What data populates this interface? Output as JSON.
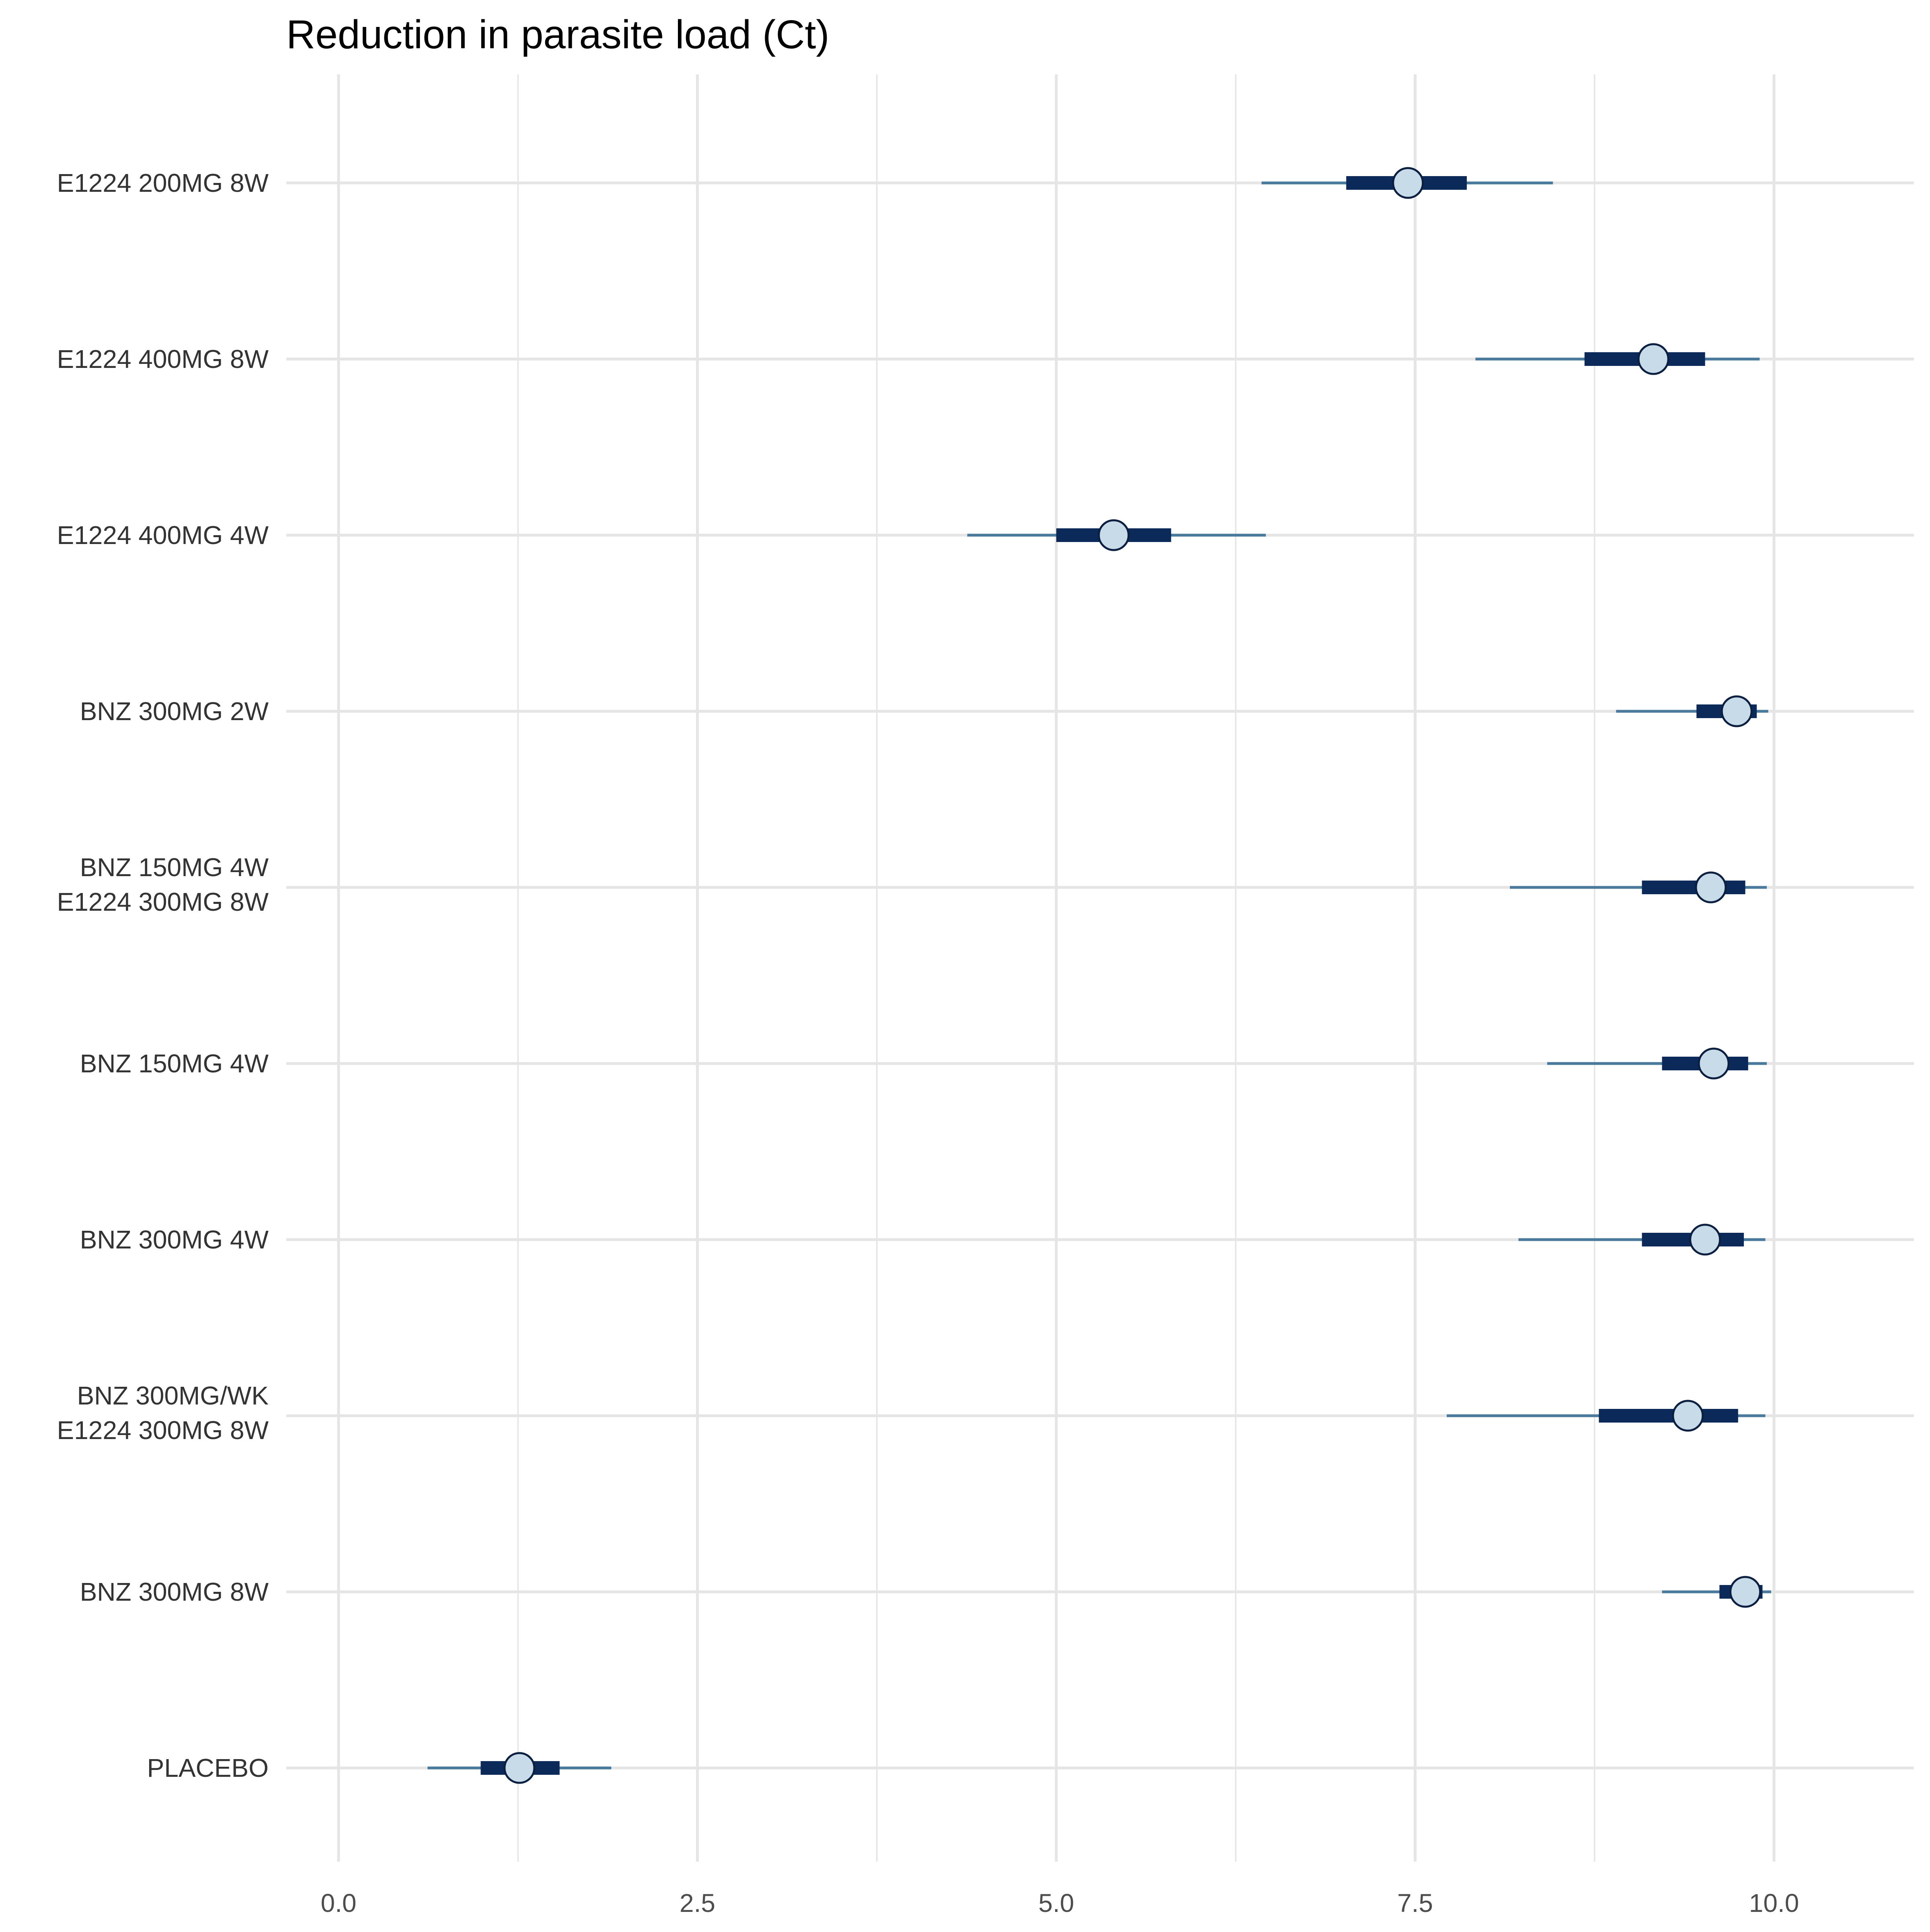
{
  "chart_data": {
    "type": "interval",
    "title": "Reduction in parasite load (Ct)",
    "xlabel": "",
    "ylabel": "",
    "xlim": [
      -0.37,
      10.98
    ],
    "xticks": [
      "0.0",
      "2.5",
      "5.0",
      "7.5",
      "10.0"
    ],
    "xtick_values": [
      0,
      2.5,
      5,
      7.5,
      10
    ],
    "grid": true,
    "colors": {
      "outer_interval": "#4a7a9b",
      "inner_interval": "#0b2a5a",
      "point_fill": "#c8dbe8",
      "point_stroke": "#0b1f40",
      "grid": "#e5e5e5"
    },
    "series": [
      {
        "label": [
          "E1224 200MG 8W"
        ],
        "median": 7.45,
        "inner": [
          7.02,
          7.86
        ],
        "outer": [
          6.43,
          8.46
        ]
      },
      {
        "label": [
          "E1224 400MG 8W"
        ],
        "median": 9.16,
        "inner": [
          8.68,
          9.52
        ],
        "outer": [
          7.92,
          9.9
        ]
      },
      {
        "label": [
          "E1224 400MG 4W"
        ],
        "median": 5.4,
        "inner": [
          5.0,
          5.8
        ],
        "outer": [
          4.38,
          6.46
        ]
      },
      {
        "label": [
          "BNZ 300MG 2W"
        ],
        "median": 9.74,
        "inner": [
          9.46,
          9.88
        ],
        "outer": [
          8.9,
          9.96
        ]
      },
      {
        "label": [
          "BNZ 150MG 4W",
          "E1224 300MG 8W"
        ],
        "median": 9.56,
        "inner": [
          9.08,
          9.8
        ],
        "outer": [
          8.16,
          9.95
        ]
      },
      {
        "label": [
          "BNZ 150MG 4W"
        ],
        "median": 9.58,
        "inner": [
          9.22,
          9.82
        ],
        "outer": [
          8.42,
          9.95
        ]
      },
      {
        "label": [
          "BNZ 300MG 4W"
        ],
        "median": 9.52,
        "inner": [
          9.08,
          9.79
        ],
        "outer": [
          8.22,
          9.94
        ]
      },
      {
        "label": [
          "BNZ 300MG/WK",
          "E1224 300MG 8W"
        ],
        "median": 9.4,
        "inner": [
          8.78,
          9.75
        ],
        "outer": [
          7.72,
          9.94
        ]
      },
      {
        "label": [
          "BNZ 300MG 8W"
        ],
        "median": 9.8,
        "inner": [
          9.62,
          9.92
        ],
        "outer": [
          9.22,
          9.98
        ]
      },
      {
        "label": [
          "PLACEBO"
        ],
        "median": 1.26,
        "inner": [
          0.99,
          1.54
        ],
        "outer": [
          0.62,
          1.9
        ]
      }
    ]
  }
}
